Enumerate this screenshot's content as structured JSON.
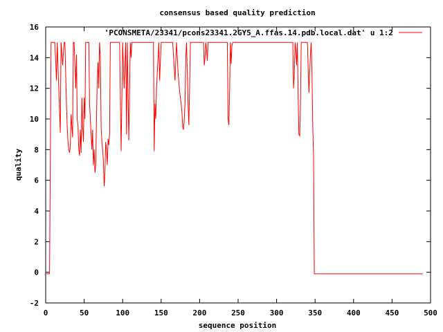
{
  "chart_data": {
    "type": "line",
    "title": "consensus based quality prediction",
    "xlabel": "sequence position",
    "ylabel": "quality",
    "xlim": [
      0,
      500
    ],
    "ylim": [
      -2,
      16
    ],
    "x_ticks": [
      "0",
      "50",
      "100",
      "150",
      "200",
      "250",
      "300",
      "350",
      "400",
      "450",
      "500"
    ],
    "y_ticks": [
      "-2",
      "0",
      "2",
      "4",
      "6",
      "8",
      "10",
      "12",
      "14",
      "16"
    ],
    "grid": false,
    "legend_position": "top-right",
    "series": [
      {
        "name": "'PCONSMETA/23341/pcons23341.2GY5_A.ffas.14.pdb.local.dat' u 1:2",
        "color": "#ff0000",
        "x": [
          1,
          5,
          6,
          7,
          10,
          12,
          14,
          15,
          17,
          19,
          20,
          22,
          24,
          25,
          27,
          28,
          29,
          30,
          31,
          32,
          33,
          34,
          35,
          36,
          37,
          38,
          39,
          40,
          41,
          42,
          43,
          44,
          45,
          46,
          47,
          48,
          49,
          50,
          51,
          52,
          53,
          54,
          55,
          56,
          57,
          58,
          59,
          60,
          61,
          62,
          63,
          64,
          65,
          66,
          67,
          68,
          69,
          70,
          71,
          72,
          73,
          74,
          75,
          76,
          77,
          78,
          79,
          80,
          81,
          82,
          83,
          84,
          85,
          86,
          87,
          88,
          89,
          90,
          91,
          92,
          93,
          94,
          96,
          98,
          100,
          102,
          104,
          105,
          106,
          108,
          110,
          111,
          112,
          113,
          114,
          116,
          118,
          120,
          125,
          130,
          138,
          140,
          141,
          142,
          143,
          144,
          145,
          146,
          147,
          148,
          150,
          152,
          155,
          160,
          165,
          168,
          170,
          172,
          174,
          176,
          177,
          178,
          179,
          180,
          181,
          182,
          183,
          184,
          185,
          186,
          187,
          188,
          189,
          190,
          195,
          200,
          205,
          206,
          207,
          208,
          209,
          210,
          211,
          212,
          213,
          215,
          220,
          225,
          230,
          235,
          236,
          237,
          238,
          239,
          240,
          241,
          242,
          243,
          245,
          250,
          260,
          280,
          300,
          320,
          321,
          322,
          323,
          324,
          325,
          326,
          327,
          328,
          329,
          330,
          331,
          332,
          333,
          334,
          336,
          340,
          342,
          343,
          344,
          345,
          346,
          347,
          348,
          349,
          350,
          360,
          400,
          450,
          490
        ],
        "y": [
          -0.1,
          -0.1,
          7.5,
          15,
          15,
          15,
          12.5,
          15,
          12,
          9.1,
          15,
          13.5,
          15,
          15,
          11,
          9.5,
          8.5,
          8,
          7.8,
          8.2,
          10.3,
          9.5,
          8.8,
          15,
          15,
          13.5,
          12,
          14.2,
          10,
          9.5,
          8,
          7.6,
          9.3,
          7.8,
          11.4,
          9.5,
          8.5,
          11.4,
          10,
          15,
          15,
          15,
          15,
          15,
          11,
          10,
          9,
          8,
          9.3,
          7,
          8,
          6.5,
          7,
          10,
          12.5,
          13.7,
          12,
          15,
          14,
          9.5,
          8.5,
          8,
          7.2,
          5.6,
          6.5,
          8.5,
          8,
          7,
          8.7,
          8.3,
          9,
          15,
          15,
          15,
          15,
          15,
          15,
          15,
          15,
          15,
          15,
          15,
          15,
          7.9,
          15,
          12,
          15,
          9,
          15,
          8.6,
          15,
          14,
          15,
          15,
          15,
          15,
          15,
          15,
          15,
          15,
          15,
          15,
          7.9,
          11,
          10,
          12,
          13,
          14,
          15,
          12.5,
          15,
          15,
          15,
          15,
          15,
          12.5,
          15,
          13,
          11.8,
          11,
          10.5,
          9.5,
          9.3,
          10,
          11,
          14,
          15,
          13,
          11,
          9.6,
          12,
          15,
          15,
          15,
          15,
          15,
          15,
          13.5,
          14,
          15,
          14.5,
          13.8,
          15,
          15,
          15,
          15,
          15,
          15,
          15,
          15,
          15,
          10,
          9.6,
          12,
          15,
          13.6,
          14.8,
          15,
          15,
          15,
          15,
          15,
          15,
          15,
          15,
          12,
          13,
          15,
          14.5,
          13.5,
          15,
          11.5,
          9,
          8.9,
          11,
          15,
          15,
          15,
          15,
          15,
          11.7,
          13,
          14.2,
          15,
          12.8,
          9.4,
          7.5,
          -0.1,
          -0.1,
          -0.1,
          -0.1,
          -0.1,
          -0.1
        ]
      }
    ]
  }
}
